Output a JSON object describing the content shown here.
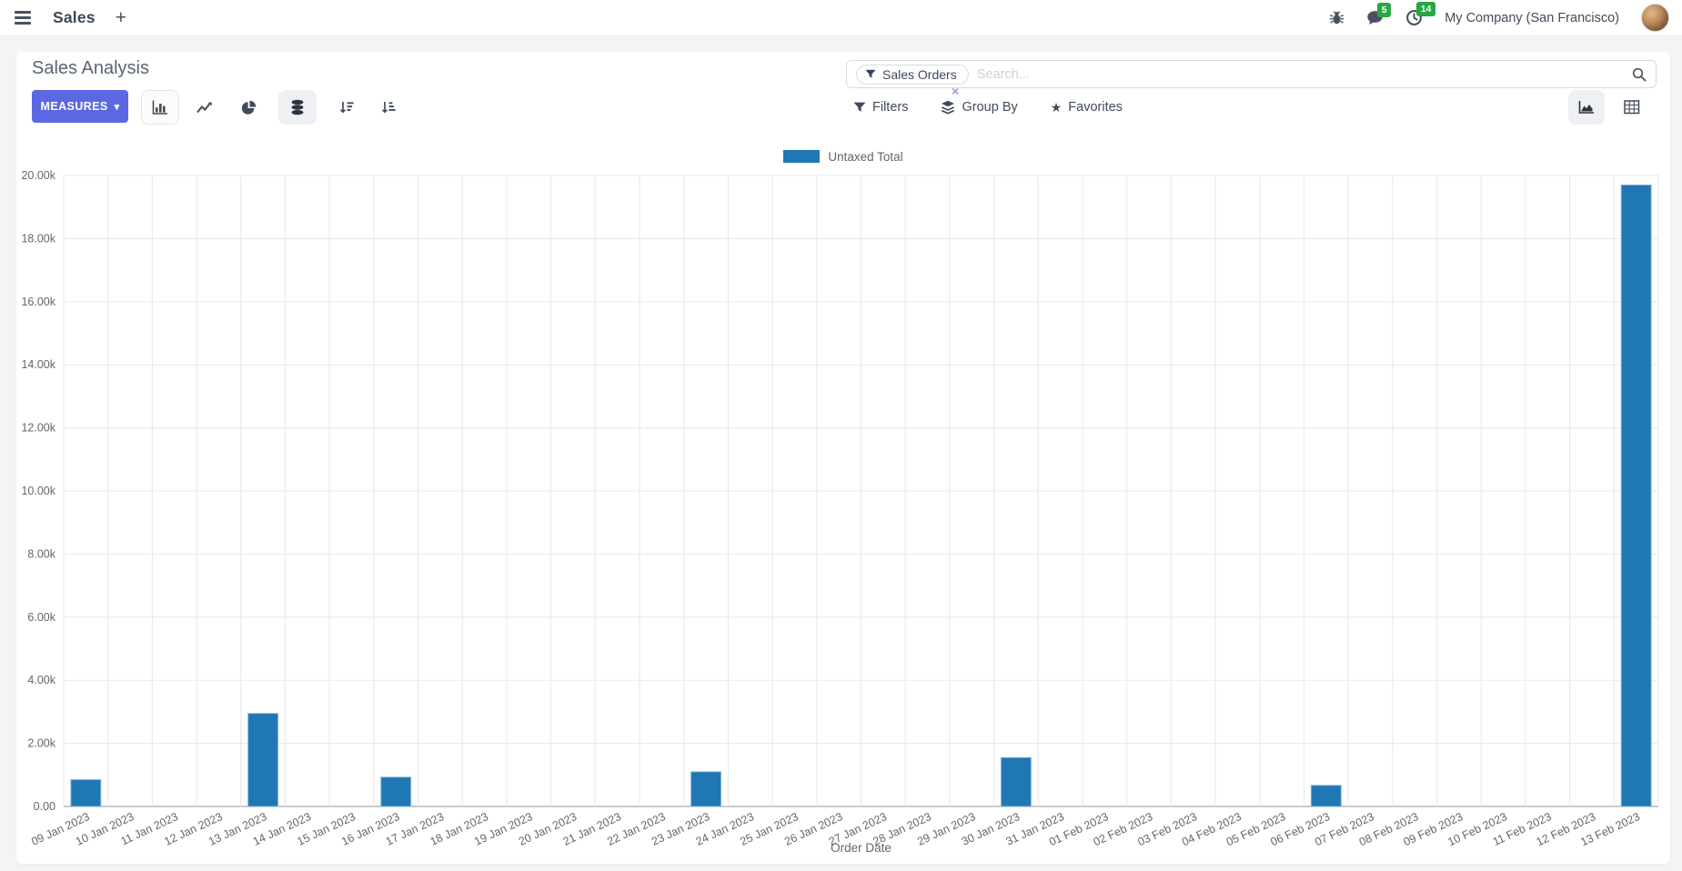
{
  "navbar": {
    "app_label": "Sales",
    "plus": "+",
    "message_badge": "5",
    "activity_badge": "14",
    "company": "My Company (San Francisco)"
  },
  "control_panel": {
    "title": "Sales Analysis",
    "measures_label": "MEASURES",
    "caret": "▾",
    "search": {
      "facet_label": "Sales Orders",
      "placeholder": "Search...",
      "remove": "×"
    },
    "filters_label": "Filters",
    "group_by_label": "Group By",
    "favorites_label": "Favorites",
    "star": "★"
  },
  "colors": {
    "bar": "#1f77b4",
    "bar_border": "#8fbcdd",
    "accent_button": "#5c68e2",
    "badge_green": "#28a745",
    "grid": "#e8e8ea",
    "zero_line": "#b6b8bc",
    "tick_text": "#666666"
  },
  "chart_data": {
    "type": "bar",
    "title": "",
    "xlabel": "Order Date",
    "ylabel": "",
    "legend_position": "top",
    "grid": true,
    "ylim": [
      0,
      20000
    ],
    "ytick_step": 2000,
    "ytick_labels": [
      "0.00",
      "2.00k",
      "4.00k",
      "6.00k",
      "8.00k",
      "10.00k",
      "12.00k",
      "14.00k",
      "16.00k",
      "18.00k",
      "20.00k"
    ],
    "legend": [
      {
        "label": "Untaxed Total",
        "color": "#1f77b4"
      }
    ],
    "categories": [
      "09 Jan 2023",
      "10 Jan 2023",
      "11 Jan 2023",
      "12 Jan 2023",
      "13 Jan 2023",
      "14 Jan 2023",
      "15 Jan 2023",
      "16 Jan 2023",
      "17 Jan 2023",
      "18 Jan 2023",
      "19 Jan 2023",
      "20 Jan 2023",
      "21 Jan 2023",
      "22 Jan 2023",
      "23 Jan 2023",
      "24 Jan 2023",
      "25 Jan 2023",
      "26 Jan 2023",
      "27 Jan 2023",
      "28 Jan 2023",
      "29 Jan 2023",
      "30 Jan 2023",
      "31 Jan 2023",
      "01 Feb 2023",
      "02 Feb 2023",
      "03 Feb 2023",
      "04 Feb 2023",
      "05 Feb 2023",
      "06 Feb 2023",
      "07 Feb 2023",
      "08 Feb 2023",
      "09 Feb 2023",
      "10 Feb 2023",
      "11 Feb 2023",
      "12 Feb 2023",
      "13 Feb 2023"
    ],
    "series": [
      {
        "name": "Untaxed Total",
        "values": [
          850,
          0,
          0,
          0,
          2950,
          0,
          0,
          930,
          0,
          0,
          0,
          0,
          0,
          0,
          1100,
          0,
          0,
          0,
          0,
          0,
          0,
          1550,
          0,
          0,
          0,
          0,
          0,
          0,
          670,
          0,
          0,
          0,
          0,
          0,
          0,
          19700
        ]
      }
    ]
  }
}
